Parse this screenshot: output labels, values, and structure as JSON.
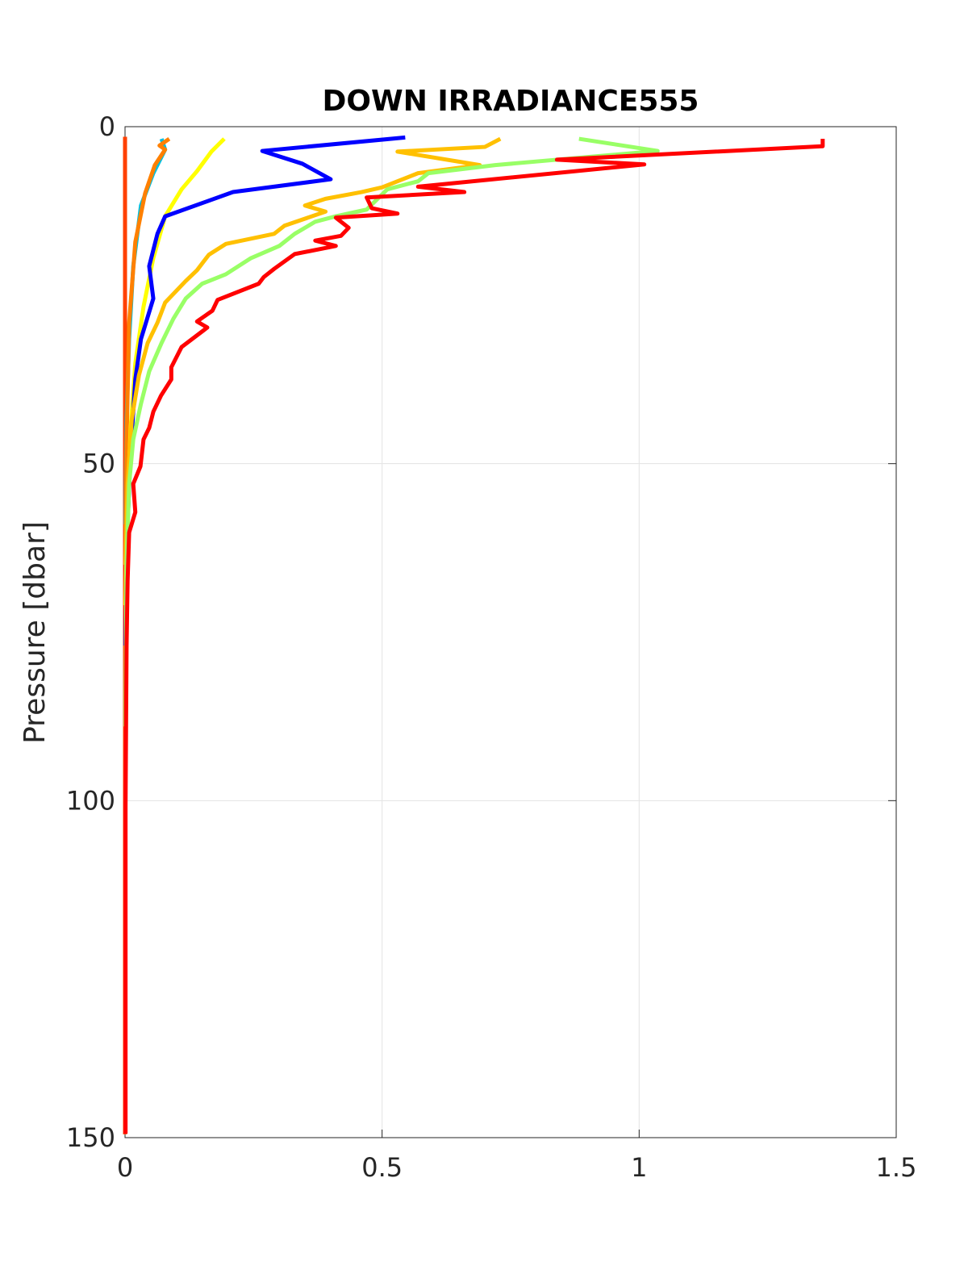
{
  "chart_data": {
    "type": "line",
    "title": "DOWN IRRADIANCE555",
    "y_label": "Pressure [dbar]",
    "xlim": [
      0,
      1.5
    ],
    "xticks": [
      0,
      0.5,
      1,
      1.5
    ],
    "ylim": [
      0,
      150
    ],
    "yticks": [
      0,
      50,
      100,
      150
    ],
    "y_reversed": true,
    "grid": true,
    "series": [
      {
        "color": "#ff4000",
        "x": [
          0,
          0
        ],
        "y": [
          1.5,
          149.5
        ]
      },
      {
        "color": "#00bfe0",
        "x": [
          0.071,
          0.078,
          0.055,
          0.031,
          0.016,
          0.008,
          0.003,
          0.001
        ],
        "y": [
          1.8,
          3.4,
          6.9,
          11.7,
          20.7,
          31.5,
          43.5,
          59
        ]
      },
      {
        "color": "#ff8000",
        "x": [
          0.086,
          0.067,
          0.078,
          0.058,
          0.039,
          0.02,
          0.008,
          0.003,
          0.001
        ],
        "y": [
          1.8,
          2.8,
          3.4,
          5.7,
          9.9,
          17.1,
          29.1,
          47,
          65
        ]
      },
      {
        "color": "#ffff00",
        "x": [
          0.193,
          0.168,
          0.14,
          0.11,
          0.078,
          0.055,
          0.036,
          0.02,
          0.011,
          0.005,
          0.001
        ],
        "y": [
          1.8,
          3.7,
          6.6,
          9.3,
          13.3,
          19.5,
          26.7,
          35.1,
          44.7,
          55.4,
          71
        ]
      },
      {
        "color": "#0000ff",
        "x": [
          0.545,
          0.267,
          0.345,
          0.4,
          0.21,
          0.078,
          0.063,
          0.047,
          0.055,
          0.031,
          0.02,
          0.011,
          0.005,
          0.001
        ],
        "y": [
          1.6,
          3.6,
          5.5,
          7.8,
          9.7,
          13.3,
          15.9,
          20.7,
          25.5,
          31.5,
          37.5,
          48.2,
          59,
          77
        ]
      },
      {
        "color": "#ffc000",
        "x": [
          0.73,
          0.7,
          0.53,
          0.69,
          0.57,
          0.5,
          0.46,
          0.39,
          0.35,
          0.39,
          0.31,
          0.29,
          0.196,
          0.163,
          0.14,
          0.118,
          0.078,
          0.063,
          0.044,
          0.027,
          0.013,
          0.005,
          0.001
        ],
        "y": [
          1.8,
          3.0,
          3.7,
          5.7,
          6.9,
          9.0,
          9.7,
          10.7,
          11.7,
          12.6,
          14.7,
          15.9,
          17.4,
          19.0,
          21.3,
          22.9,
          26.1,
          29.1,
          32.1,
          36.9,
          43.5,
          53,
          65
        ]
      },
      {
        "color": "#99ff66",
        "x": [
          0.883,
          1.036,
          0.84,
          0.72,
          0.59,
          0.57,
          0.51,
          0.47,
          0.41,
          0.37,
          0.33,
          0.3,
          0.245,
          0.196,
          0.15,
          0.118,
          0.094,
          0.071,
          0.047,
          0.031,
          0.016,
          0.008,
          0.003,
          0.001
        ],
        "y": [
          1.8,
          3.6,
          4.9,
          5.7,
          6.9,
          8.1,
          9.3,
          12.3,
          13.3,
          14.1,
          15.9,
          17.7,
          19.5,
          21.9,
          23.3,
          25.5,
          28.5,
          32.1,
          36.3,
          41.1,
          46.4,
          53,
          65,
          89
        ]
      },
      {
        "color": "#ff0000",
        "x": [
          1.357,
          1.357,
          0.84,
          1.01,
          0.57,
          0.66,
          0.47,
          0.48,
          0.53,
          0.41,
          0.435,
          0.42,
          0.37,
          0.41,
          0.33,
          0.29,
          0.27,
          0.26,
          0.18,
          0.17,
          0.14,
          0.16,
          0.11,
          0.09,
          0.09,
          0.07,
          0.055,
          0.047,
          0.036,
          0.03,
          0.016,
          0.02,
          0.008,
          0.005,
          0.003,
          0.001,
          0.001
        ],
        "y": [
          1.8,
          2.9,
          4.9,
          5.6,
          8.9,
          9.7,
          10.5,
          12.1,
          12.9,
          13.5,
          15,
          16.2,
          16.9,
          17.7,
          18.9,
          21.1,
          22.3,
          23.3,
          25.7,
          27.3,
          28.9,
          29.8,
          32.7,
          35.7,
          37.5,
          39.9,
          42.3,
          44.7,
          46.4,
          50.4,
          53,
          57.2,
          60.2,
          67.4,
          77,
          100.9,
          149.4
        ]
      }
    ]
  }
}
